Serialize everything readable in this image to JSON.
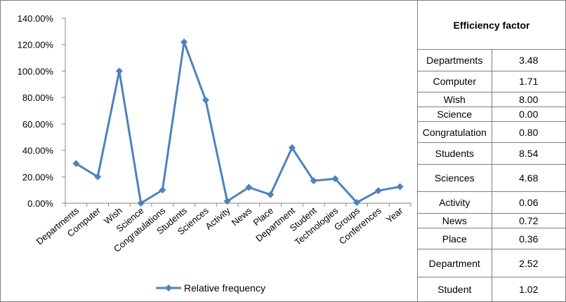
{
  "chart_data": {
    "type": "line",
    "categories": [
      "Departments",
      "Computer",
      "Wish",
      "Science",
      "Congratulations",
      "Students",
      "Sciences",
      "Activity",
      "News",
      "Place",
      "Department",
      "Student",
      "Technologies",
      "Groups",
      "Conferences",
      "Year"
    ],
    "series": [
      {
        "name": "Relative frequency",
        "values": [
          0.3,
          0.2,
          1.0,
          0.0,
          0.1,
          1.22,
          0.78,
          0.015,
          0.12,
          0.065,
          0.42,
          0.17,
          0.185,
          0.005,
          0.095,
          0.125
        ],
        "color": "#4f81bd"
      }
    ],
    "ylim": [
      0,
      1.4
    ],
    "yticks": [
      "0.00%",
      "20.00%",
      "40.00%",
      "60.00%",
      "80.00%",
      "100.00%",
      "120.00%",
      "140.00%"
    ],
    "legend_position": "bottom",
    "grid": false
  },
  "table": {
    "header": "Efficiency factor",
    "rows": [
      {
        "name": "Departments",
        "value": "3.48"
      },
      {
        "name": "Computer",
        "value": "1.71"
      },
      {
        "name": "Wish",
        "value": "8.00"
      },
      {
        "name": "Science",
        "value": "0.00"
      },
      {
        "name": "Congratulation",
        "value": "0.80"
      },
      {
        "name": "Students",
        "value": "8.54"
      },
      {
        "name": "Sciences",
        "value": "4.68"
      },
      {
        "name": "Activity",
        "value": "0.06"
      },
      {
        "name": "News",
        "value": "0.72"
      },
      {
        "name": "Place",
        "value": "0.36"
      },
      {
        "name": "Department",
        "value": "2.52"
      },
      {
        "name": "Student",
        "value": "1.02"
      }
    ]
  }
}
